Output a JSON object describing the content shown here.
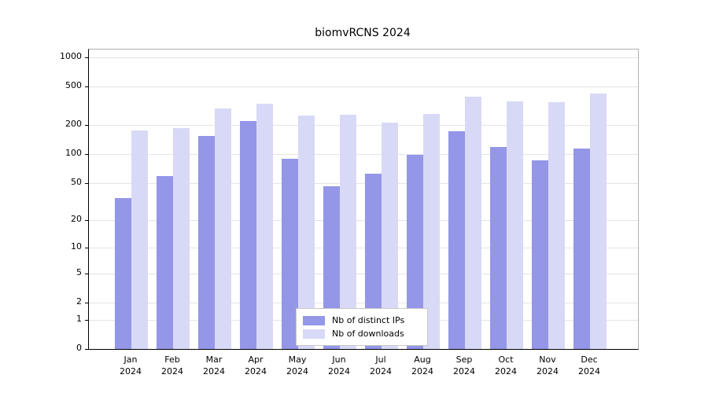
{
  "title": "biomvRCNS 2024",
  "chart_data": {
    "type": "bar",
    "title": "biomvRCNS 2024",
    "categories": [
      "Jan",
      "Feb",
      "Mar",
      "Apr",
      "May",
      "Jun",
      "Jul",
      "Aug",
      "Sep",
      "Oct",
      "Nov",
      "Dec"
    ],
    "year": "2024",
    "series": [
      {
        "name": "Nb of distinct IPs",
        "color": "#9496e8",
        "values": [
          35,
          59,
          154,
          220,
          89,
          46,
          63,
          99,
          173,
          119,
          86,
          114
        ]
      },
      {
        "name": "Nb of downloads",
        "color": "#d8d9f6",
        "values": [
          177,
          186,
          297,
          330,
          250,
          256,
          212,
          260,
          393,
          351,
          345,
          423
        ]
      }
    ],
    "yticks": [
      0,
      1,
      2,
      5,
      10,
      20,
      50,
      100,
      200,
      500,
      1000
    ],
    "xlabel": "",
    "ylabel": "",
    "ylim": [
      0,
      1200
    ],
    "scale": "log10(value+1)",
    "grid": true,
    "legend": {
      "position": "inside-bottom-center",
      "entries": [
        "Nb of distinct IPs",
        "Nb of downloads"
      ]
    }
  }
}
